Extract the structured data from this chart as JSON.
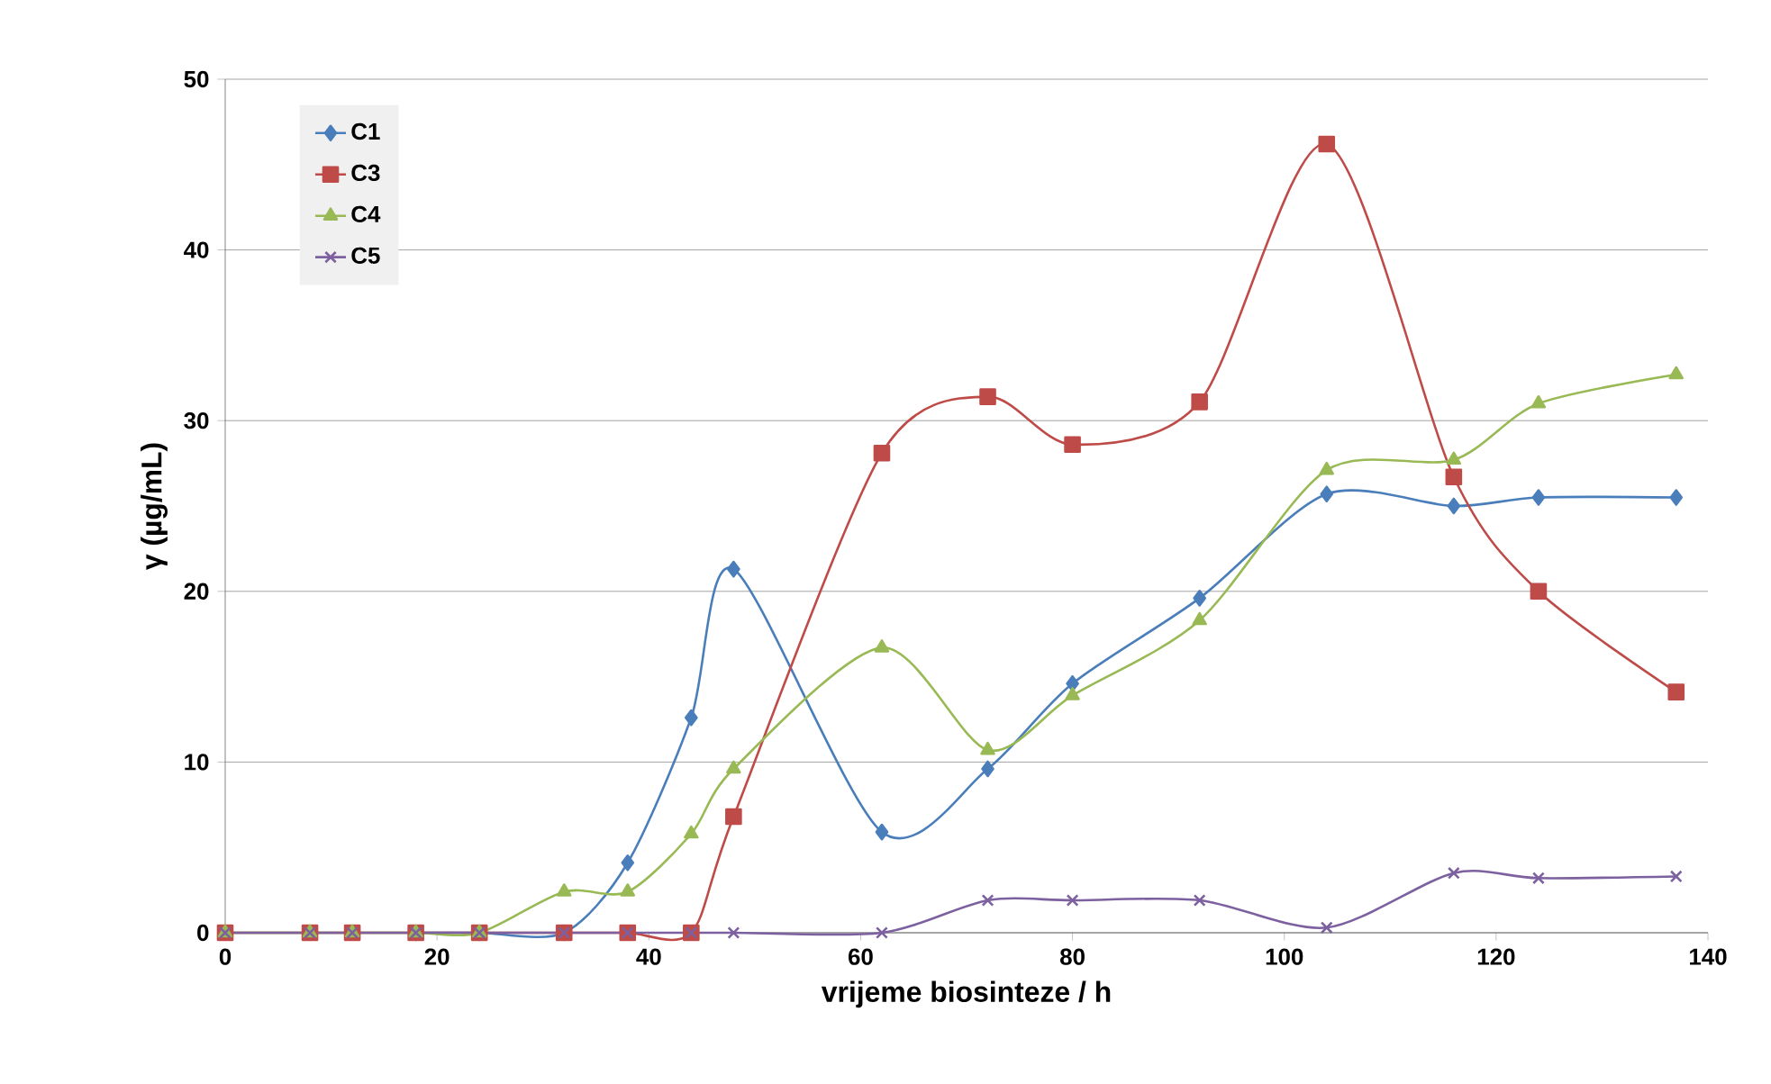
{
  "chart_data": {
    "type": "line",
    "xlabel": "vrijeme biosinteze / h",
    "ylabel": "γ (µg/mL)",
    "x": [
      0,
      8,
      12,
      18,
      24,
      32,
      38,
      44,
      48,
      62,
      72,
      80,
      92,
      104,
      116,
      124,
      137
    ],
    "xlim": [
      0,
      140
    ],
    "xticks": [
      0,
      20,
      40,
      60,
      80,
      100,
      120,
      140
    ],
    "ylim": [
      0,
      50
    ],
    "yticks": [
      0,
      10,
      20,
      30,
      40,
      50
    ],
    "grid": "y",
    "legend": "top left",
    "series": [
      {
        "name": "C1",
        "color": "#4a7ebb",
        "marker": "diamond",
        "values": [
          null,
          null,
          null,
          0,
          0,
          0,
          4.1,
          12.6,
          21.3,
          5.9,
          9.6,
          14.6,
          19.6,
          25.7,
          25.0,
          25.5,
          25.5
        ]
      },
      {
        "name": "C3",
        "color": "#be4b48",
        "marker": "square",
        "values": [
          0,
          0,
          0,
          0,
          0,
          0,
          0,
          0,
          6.8,
          28.1,
          31.4,
          28.6,
          31.1,
          46.2,
          26.7,
          20.0,
          14.1
        ]
      },
      {
        "name": "C4",
        "color": "#98b954",
        "marker": "triangle",
        "values": [
          0,
          0,
          0,
          0,
          0,
          2.4,
          2.4,
          5.8,
          9.6,
          16.7,
          10.7,
          13.9,
          18.3,
          27.1,
          27.7,
          31.0,
          32.7
        ]
      },
      {
        "name": "C5",
        "color": "#7d60a0",
        "marker": "cross",
        "values": [
          0,
          0,
          0,
          0,
          0,
          0,
          0,
          0,
          0,
          0,
          1.9,
          1.9,
          1.9,
          0.3,
          3.5,
          3.2,
          3.3
        ]
      }
    ]
  }
}
